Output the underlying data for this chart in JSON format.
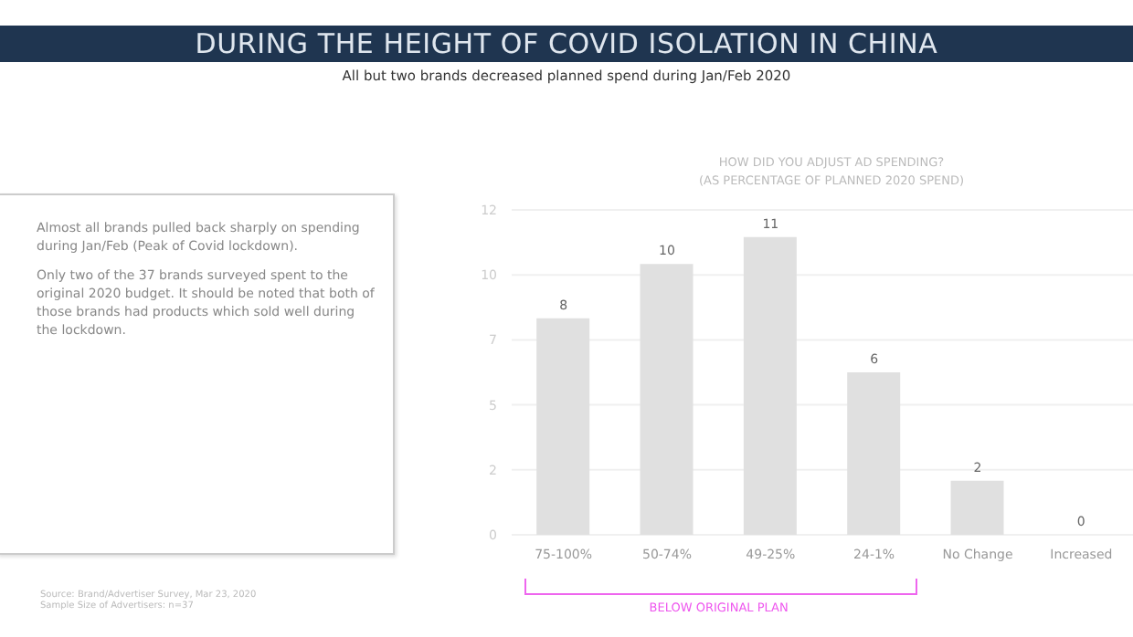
{
  "chart_data": {
    "type": "bar",
    "title": "DURING THE HEIGHT OF COVID ISOLATION IN CHINA",
    "subtitle": "All but two brands decreased planned spend during Jan/Feb 2020",
    "categories": [
      "75-100%",
      "50-74%",
      "49-25%",
      "24-1%",
      "No Change",
      "Increased"
    ],
    "values": [
      8,
      10,
      11,
      6,
      2,
      0
    ],
    "color": "#e0e0e0",
    "ylim": [
      0,
      12
    ],
    "yticks": [
      0,
      {
        "value": 2.4,
        "label": "2"
      },
      {
        "value": 4.8,
        "label": "5"
      },
      {
        "value": 7.2,
        "label": "7"
      },
      {
        "value": 9.6,
        "label": "10"
      },
      12
    ],
    "grid": "y",
    "data_labels": true,
    "annotations": [
      "HOW DID YOU ADJUST AD SPENDING?\n(AS PERCENTAGE OF PLANNED 2020 SPEND)",
      "Almost all brands pulled back sharply on spending during Jan/Feb (Peak of Covid lockdown).",
      "Only two of the 37 brands surveyed spent to the original 2020 budget. It should be noted that both of those brands had products which sold well during the lockdown.",
      "BELOW ORIGINAL PLAN",
      "Source: Brand/Advertiser Survey, Mar 23, 2020",
      "Sample Size of Advertisers: n=37"
    ]
  }
}
